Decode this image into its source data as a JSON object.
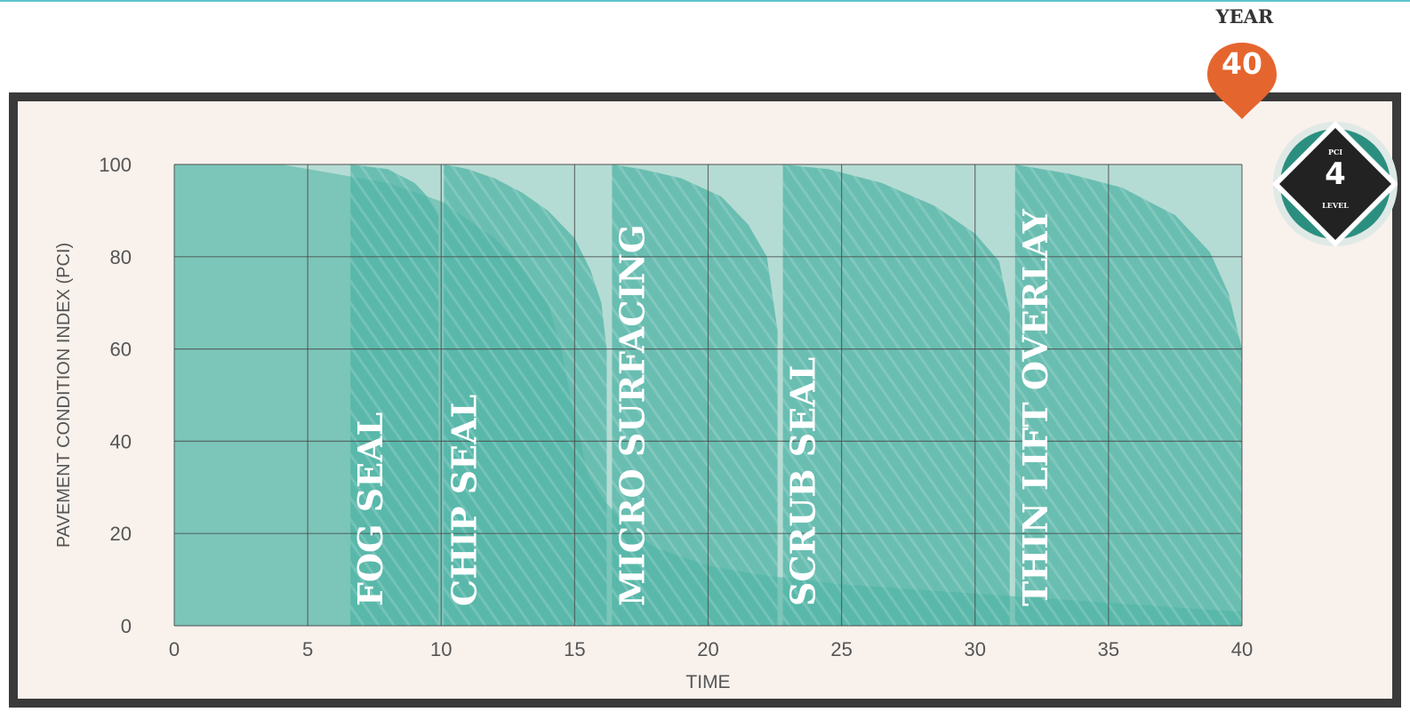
{
  "header": {
    "year_label": "YEAR",
    "year_value": "40"
  },
  "badge": {
    "top_text": "PCI",
    "value": "4",
    "bottom_text": "LEVEL"
  },
  "colors": {
    "background": "#f8f1ec",
    "frame": "#3a3a3a",
    "teal_light": "#b5dcd4",
    "teal": "#4cb3a3",
    "grid": "#4a4a4a",
    "pin": "#e5652e",
    "badge_ring": "#2b8f80"
  },
  "chart_data": {
    "type": "area",
    "title": "",
    "xlabel": "TIME",
    "ylabel": "PAVEMENT CONDITION INDEX (PCI)",
    "xlim": [
      0,
      40
    ],
    "ylim": [
      0,
      100
    ],
    "xticks": [
      0,
      5,
      10,
      15,
      20,
      25,
      30,
      35,
      40
    ],
    "yticks": [
      0,
      20,
      40,
      60,
      80,
      100
    ],
    "grid": true,
    "baseline_curve": {
      "x": [
        0,
        4,
        8,
        10,
        12,
        13,
        14,
        14.5,
        15,
        15.5,
        16,
        17,
        18,
        20,
        22,
        25,
        30,
        35,
        40
      ],
      "y": [
        100,
        100,
        96,
        92,
        84,
        78,
        70,
        60,
        45,
        33,
        28,
        21,
        17,
        13,
        11,
        9,
        7,
        5,
        3
      ]
    },
    "treatments": [
      {
        "label": "FOG SEAL",
        "x": [
          6.6,
          8,
          9,
          9.5,
          9.9
        ],
        "y": [
          100,
          99,
          96,
          93,
          89
        ]
      },
      {
        "label": "CHIP SEAL",
        "x": [
          10.1,
          11,
          12,
          13,
          14,
          15,
          15.6,
          16,
          16.2
        ],
        "y": [
          100,
          99,
          97,
          94,
          90,
          84,
          77,
          70,
          60
        ]
      },
      {
        "label": "MICRO SURFACING",
        "x": [
          16.4,
          17.5,
          19,
          20.5,
          21.5,
          22.2,
          22.6
        ],
        "y": [
          100,
          99,
          97,
          93,
          87,
          80,
          64
        ]
      },
      {
        "label": "SCRUB SEAL",
        "x": [
          22.8,
          24.5,
          26.5,
          28.5,
          30,
          30.9,
          31.3
        ],
        "y": [
          100,
          99,
          96,
          91,
          85,
          79,
          68
        ]
      },
      {
        "label": "THIN LIFT OVERLAY",
        "x": [
          31.5,
          33.5,
          35.5,
          37.5,
          38.8,
          39.5,
          40
        ],
        "y": [
          100,
          98,
          95,
          89,
          81,
          72,
          60
        ]
      }
    ]
  }
}
